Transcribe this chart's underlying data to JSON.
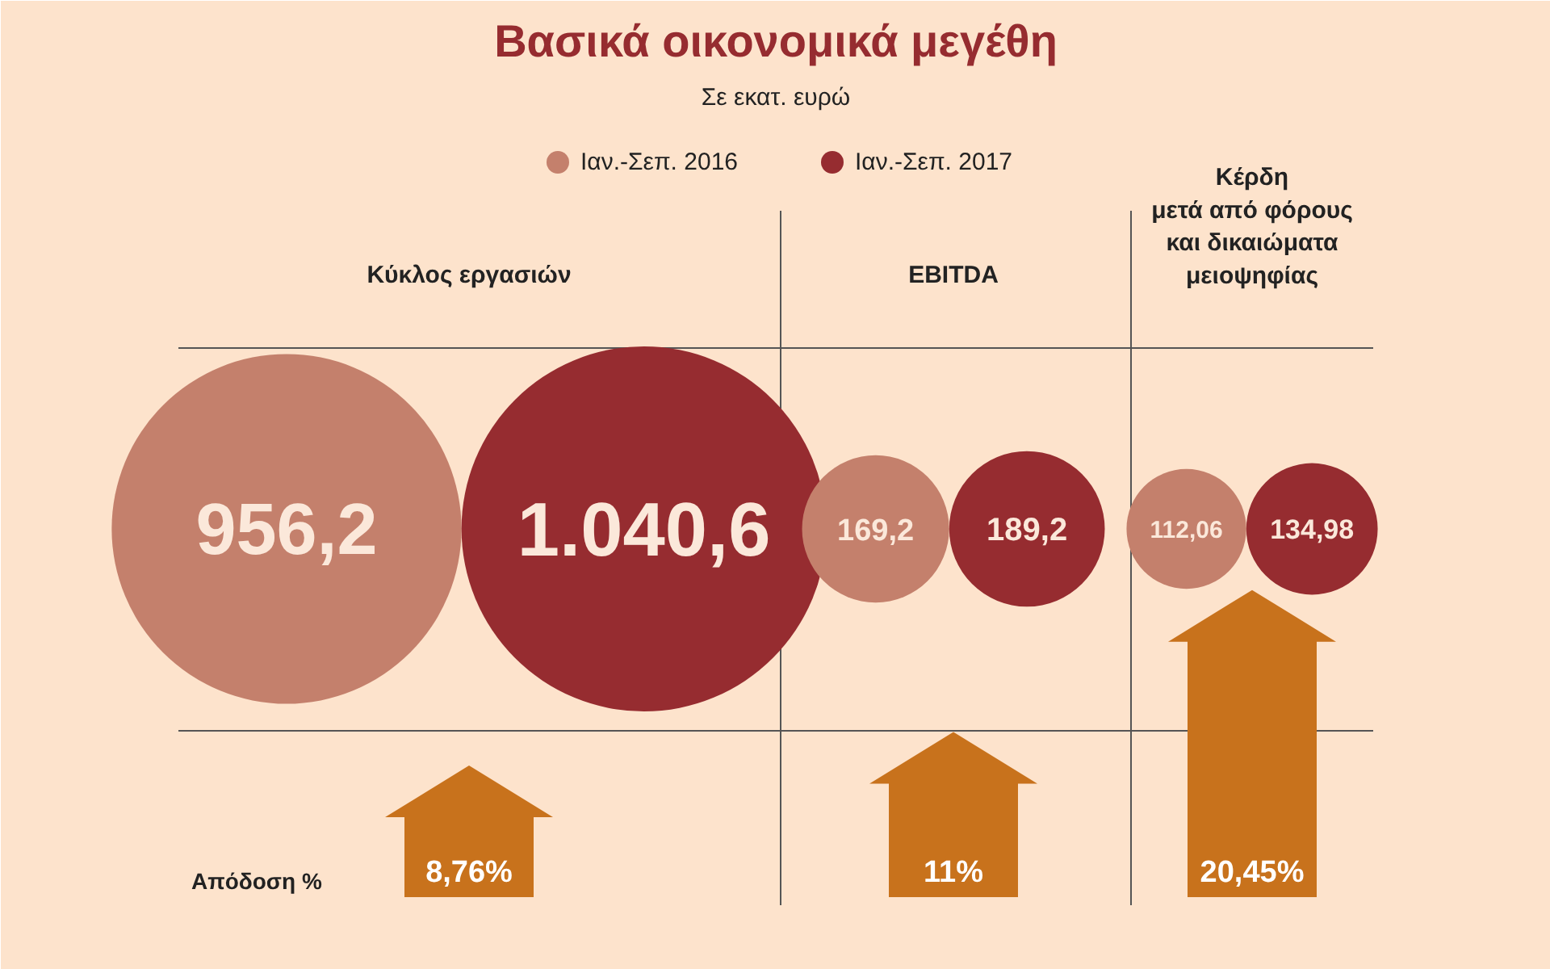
{
  "chart_data": {
    "type": "other",
    "title": "Βασικά οικονομικά μεγέθη",
    "subtitle": "Σε εκατ. ευρώ",
    "categories": [
      "Κύκλος εργασιών",
      "EBITDA",
      "Κέρδη\nμετά από φόρους\nκαι δικαιώματα\nμειοψηφίας"
    ],
    "series": [
      {
        "name": "Ιαν.-Σεπ. 2016",
        "color": "#c4806c",
        "values": [
          956.2,
          169.2,
          112.06
        ],
        "value_labels": [
          "956,2",
          "169,2",
          "112,06"
        ]
      },
      {
        "name": "Ιαν.-Σεπ. 2017",
        "color": "#962c30",
        "values": [
          1040.6,
          189.2,
          134.98
        ],
        "value_labels": [
          "1.040,6",
          "189,2",
          "134,98"
        ]
      },
      {
        "type": "bar",
        "color": "#c8721c",
        "values": [
          8.76,
          11,
          20.45
        ],
        "value_labels": [
          "8,76%",
          "11%",
          "20,45%"
        ]
      }
    ],
    "ylabel": "Απόδοση %",
    "legend": "top"
  }
}
